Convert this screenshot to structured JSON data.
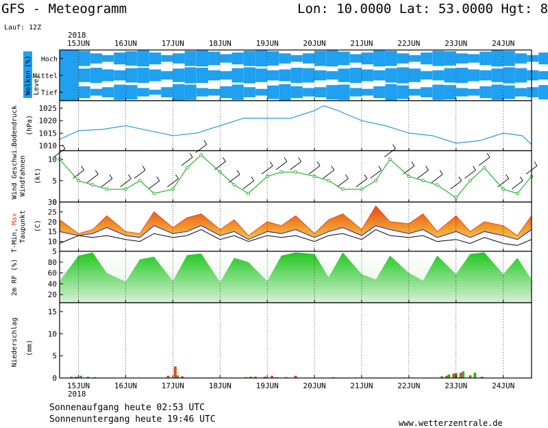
{
  "header": {
    "title": "GFS - Meteogramm",
    "location": "Lon: 10.0000 Lat: 53.0000 Hgt: 8",
    "run": "Lauf: 12Z"
  },
  "footer": {
    "sunrise": "Sonnenaufgang heute 02:53 UTC",
    "sunset": "Sonnenuntergang heute 19:46 UTC",
    "website": "www.wetterzentrale.de"
  },
  "time_axis": {
    "year": "2018",
    "day_labels": [
      "15JUN",
      "16JUN",
      "17JUN",
      "18JUN",
      "19JUN",
      "20JUN",
      "21JUN",
      "22JUN",
      "23JUN",
      "24JUN"
    ]
  },
  "panels": {
    "clouds": {
      "ylabel_a": "Wolken",
      "ylabel_unit": "(%)",
      "ylabel_b": "Level",
      "levels": [
        "Hoch",
        "Mittel",
        "Tief"
      ]
    },
    "pressure": {
      "ylabel": "Bodendruck",
      "unit": "(hPa)"
    },
    "wind": {
      "ylabel_a": "Wind Geschwi.",
      "ylabel_b": "Windfahnen",
      "unit": "(kt)"
    },
    "temperature": {
      "ylabel_min": "T-Min,",
      "ylabel_max": "Max",
      "ylabel_b": "Taupunkt",
      "unit": "(C)"
    },
    "humidity": {
      "ylabel": "2m RF (%)"
    },
    "precip": {
      "ylabel": "Niederschlag",
      "unit": "(mm)"
    }
  },
  "colors": {
    "cloud": "#1fa0f0",
    "pressure_line": "#2d9bd8",
    "wind_line": "#28b428",
    "temp_max": "#e84818",
    "temp_fill": "#f5c838",
    "tmin_line": "#1c1cd6",
    "humidity_fill": "#20c820",
    "precip_conv": "#e84820",
    "precip_large": "#30b030"
  },
  "chart_data": [
    {
      "type": "heatmap",
      "name_key": "clouds",
      "rows": [
        "Hoch",
        "Mittel",
        "Tief"
      ],
      "x_start_day": 15.0,
      "step_hours": 6,
      "coverage_percent": {
        "Hoch": [
          90,
          60,
          40,
          70,
          85,
          95,
          70,
          40,
          60,
          90,
          95,
          80,
          50,
          70,
          90,
          95,
          85,
          60,
          40,
          60,
          90,
          95,
          80,
          50,
          70,
          95,
          90,
          60,
          40,
          70,
          90,
          85,
          60,
          50,
          80,
          95,
          90,
          60,
          40,
          70
        ],
        "Mittel": [
          80,
          90,
          70,
          60,
          85,
          90,
          70,
          50,
          80,
          95,
          90,
          60,
          50,
          85,
          95,
          80,
          60,
          70,
          90,
          85,
          60,
          50,
          80,
          90,
          70,
          60,
          85,
          95,
          80,
          50,
          60,
          85,
          90,
          70,
          60,
          80,
          95,
          85,
          60,
          50
        ],
        "Tief": [
          70,
          40,
          60,
          90,
          85,
          50,
          30,
          60,
          95,
          90,
          50,
          40,
          70,
          90,
          60,
          40,
          80,
          95,
          70,
          50,
          60,
          85,
          90,
          50,
          40,
          70,
          95,
          80,
          40,
          60,
          90,
          85,
          50,
          40,
          70,
          90,
          80,
          50,
          60,
          85
        ]
      }
    },
    {
      "type": "line",
      "name_key": "pressure",
      "unit": "hPa",
      "ylim": [
        1008,
        1028
      ],
      "yticks": [
        1010,
        1015,
        1020,
        1025
      ],
      "x_days": [
        14.6,
        15.0,
        15.5,
        16.0,
        16.5,
        17.0,
        17.5,
        18.0,
        18.5,
        19.0,
        19.5,
        20.0,
        20.2,
        20.5,
        21.0,
        21.5,
        22.0,
        22.5,
        23.0,
        23.5,
        24.0,
        24.4,
        24.6
      ],
      "values": [
        1012.5,
        1016,
        1016.5,
        1018,
        1016,
        1014,
        1015,
        1018,
        1021,
        1021,
        1021,
        1024,
        1026,
        1024,
        1020,
        1018,
        1015,
        1014,
        1011,
        1012,
        1015,
        1014,
        1010.5
      ]
    },
    {
      "type": "line",
      "name_key": "wind",
      "unit": "kt",
      "ylim": [
        0,
        12
      ],
      "yticks": [
        0,
        5,
        10
      ],
      "x_days": [
        14.6,
        15.0,
        15.3,
        15.6,
        16.0,
        16.3,
        16.6,
        17.0,
        17.3,
        17.6,
        18.0,
        18.3,
        18.6,
        19.0,
        19.3,
        19.6,
        20.0,
        20.3,
        20.6,
        21.0,
        21.3,
        21.6,
        22.0,
        22.3,
        22.6,
        23.0,
        23.3,
        23.6,
        24.0,
        24.3,
        24.6
      ],
      "values": [
        10,
        5,
        4,
        3,
        3,
        5,
        2,
        3,
        8,
        11,
        7,
        4,
        2,
        6,
        7,
        7,
        6,
        5,
        3,
        3,
        5,
        10,
        6,
        5,
        4,
        1,
        5,
        8,
        3,
        2,
        6
      ]
    },
    {
      "type": "area",
      "name_key": "temperature",
      "unit": "C",
      "ylim": [
        5,
        30
      ],
      "yticks": [
        5,
        10,
        15,
        20,
        25,
        30
      ],
      "x_days": [
        14.6,
        15.0,
        15.3,
        15.6,
        16.0,
        16.3,
        16.6,
        17.0,
        17.3,
        17.6,
        18.0,
        18.3,
        18.6,
        19.0,
        19.3,
        19.6,
        20.0,
        20.3,
        20.6,
        21.0,
        21.3,
        21.6,
        22.0,
        22.3,
        22.6,
        23.0,
        23.3,
        23.6,
        24.0,
        24.3,
        24.6
      ],
      "series": [
        {
          "name": "Max",
          "values": [
            21,
            14,
            16,
            23,
            15,
            14,
            25,
            17,
            22,
            24,
            16,
            21,
            13,
            20,
            18,
            23,
            14,
            21,
            24,
            16,
            28,
            20,
            19,
            24,
            15,
            23,
            15,
            20,
            18,
            13,
            23
          ]
        },
        {
          "name": "Min",
          "values": [
            15,
            13,
            14,
            17,
            13,
            12,
            18,
            14,
            15,
            18,
            13,
            15,
            11,
            15,
            14,
            16,
            12,
            15,
            17,
            13,
            18,
            16,
            14,
            16,
            12,
            15,
            12,
            15,
            13,
            11,
            16
          ]
        },
        {
          "name": "Taupunkt",
          "values": [
            9,
            13,
            12,
            13,
            11,
            10,
            14,
            12,
            13,
            16,
            11,
            13,
            10,
            13,
            12,
            13,
            10,
            13,
            14,
            11,
            16,
            13,
            12,
            13,
            10,
            11,
            9,
            12,
            9,
            8,
            11
          ]
        }
      ]
    },
    {
      "type": "area",
      "name_key": "humidity",
      "unit": "%",
      "ylim": [
        5,
        100
      ],
      "yticks": [
        20,
        40,
        60,
        80
      ],
      "x_days": [
        14.6,
        15.0,
        15.3,
        15.6,
        16.0,
        16.3,
        16.6,
        17.0,
        17.3,
        17.6,
        18.0,
        18.3,
        18.6,
        19.0,
        19.3,
        19.6,
        20.0,
        20.3,
        20.6,
        21.0,
        21.3,
        21.6,
        22.0,
        22.3,
        22.6,
        23.0,
        23.3,
        23.6,
        24.0,
        24.3,
        24.6
      ],
      "values": [
        45,
        92,
        98,
        60,
        44,
        85,
        90,
        45,
        93,
        96,
        43,
        88,
        80,
        45,
        92,
        98,
        95,
        52,
        98,
        58,
        48,
        92,
        60,
        46,
        92,
        58,
        95,
        98,
        58,
        88,
        48
      ]
    },
    {
      "type": "bar",
      "name_key": "precip",
      "unit": "mm",
      "ylim": [
        0,
        17
      ],
      "yticks": [
        0,
        5,
        10,
        15
      ],
      "series": [
        {
          "name": "Konvektiv",
          "points": [
            [
              14.95,
              0.3
            ],
            [
              15.35,
              0.2
            ],
            [
              16.9,
              0.5
            ],
            [
              17.05,
              2.6
            ],
            [
              17.2,
              0.4
            ],
            [
              18.55,
              0.2
            ],
            [
              18.75,
              0.3
            ],
            [
              18.95,
              0.3
            ],
            [
              19.1,
              0.5
            ],
            [
              19.4,
              0.2
            ],
            [
              19.6,
              0.5
            ],
            [
              20.4,
              0.2
            ],
            [
              22.8,
              0.5
            ],
            [
              22.95,
              1.0
            ],
            [
              23.1,
              1.2
            ],
            [
              23.3,
              0.6
            ]
          ]
        },
        {
          "name": "Gross",
          "points": [
            [
              14.85,
              0.3
            ],
            [
              15.05,
              0.5
            ],
            [
              15.2,
              0.3
            ],
            [
              17.1,
              0.6
            ],
            [
              18.65,
              0.3
            ],
            [
              19.2,
              0.2
            ],
            [
              22.7,
              0.4
            ],
            [
              22.85,
              0.8
            ],
            [
              23.0,
              1.1
            ],
            [
              23.15,
              1.5
            ],
            [
              23.4,
              1.2
            ],
            [
              23.55,
              0.3
            ]
          ]
        }
      ]
    }
  ]
}
